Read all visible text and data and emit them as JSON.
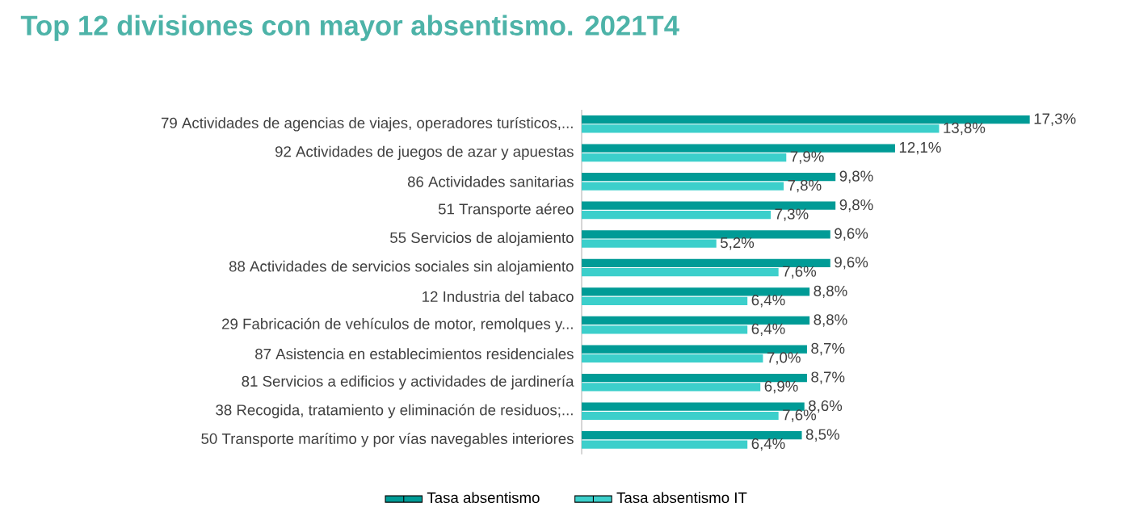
{
  "chart_data": {
    "type": "bar",
    "orientation": "horizontal",
    "title": "Top 12 divisiones con mayor absentismo. 2021T4",
    "legend": "bottom",
    "categories": [
      "79 Actividades de agencias de viajes, operadores turísticos,...",
      "92 Actividades de juegos de azar y apuestas",
      "86 Actividades sanitarias",
      "51 Transporte aéreo",
      "55 Servicios de alojamiento",
      "88 Actividades de servicios sociales sin alojamiento",
      "12 Industria del tabaco",
      "29 Fabricación de vehículos de motor, remolques y...",
      "87 Asistencia en establecimientos residenciales",
      "81 Servicios a edificios y actividades de jardinería",
      "38 Recogida, tratamiento y eliminación de residuos;...",
      "50 Transporte marítimo y por vías navegables interiores"
    ],
    "series": [
      {
        "name": "Tasa absentismo",
        "color": "#009B96",
        "values": [
          17.3,
          12.1,
          9.8,
          9.8,
          9.6,
          9.6,
          8.8,
          8.8,
          8.7,
          8.7,
          8.6,
          8.5
        ],
        "value_labels": [
          "17,3%",
          "12,1%",
          "9,8%",
          "9,8%",
          "9,6%",
          "9,6%",
          "8,8%",
          "8,8%",
          "8,7%",
          "8,7%",
          "8,6%",
          "8,5%"
        ]
      },
      {
        "name": "Tasa absentismo IT",
        "color": "#3CCFCB",
        "values": [
          13.8,
          7.9,
          7.8,
          7.3,
          5.2,
          7.6,
          6.4,
          6.4,
          7.0,
          6.9,
          7.6,
          6.4
        ],
        "value_labels": [
          "13,8%",
          "7,9%",
          "7,8%",
          "7,3%",
          "5,2%",
          "7,6%",
          "6,4%",
          "6,4%",
          "7,0%",
          "6,9%",
          "7,6%",
          "6,4%"
        ]
      }
    ]
  }
}
